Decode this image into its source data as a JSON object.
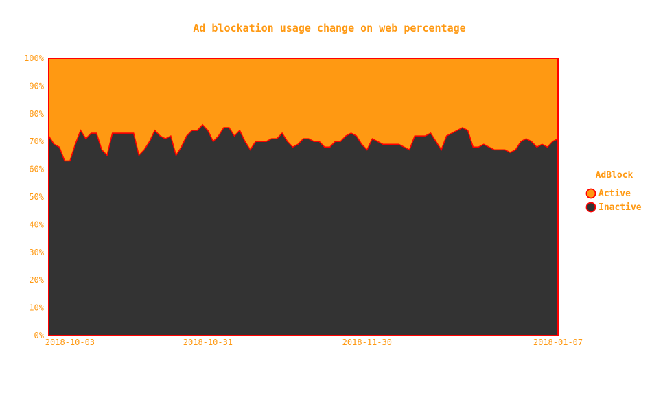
{
  "chart_data": {
    "type": "area",
    "stacked": true,
    "normalized": true,
    "title": "Ad blockation usage change on web percentage",
    "xlabel": "",
    "ylabel": "",
    "ylim": [
      0,
      100
    ],
    "y_ticks": [
      "0%",
      "10%",
      "20%",
      "30%",
      "40%",
      "50%",
      "60%",
      "70%",
      "80%",
      "90%",
      "100%"
    ],
    "x_ticks": [
      "2018-10-03",
      "2018-10-31",
      "2018-11-30",
      "2018-01-07"
    ],
    "x_range": [
      0,
      96
    ],
    "x_tick_positions": [
      4,
      30,
      60,
      96
    ],
    "legend": {
      "title": "AdBlock",
      "position": "right"
    },
    "series": [
      {
        "name": "Inactive",
        "color": "#333333",
        "values": [
          72,
          69,
          68,
          63,
          63,
          69,
          74,
          71,
          73,
          73,
          67,
          65,
          73,
          73,
          73,
          73,
          73,
          65,
          67,
          70,
          74,
          72,
          71,
          72,
          65,
          68,
          72,
          74,
          74,
          76,
          74,
          70,
          72,
          75,
          75,
          72,
          74,
          70,
          67,
          70,
          70,
          70,
          71,
          71,
          73,
          70,
          68,
          69,
          71,
          71,
          70,
          70,
          68,
          68,
          70,
          70,
          72,
          73,
          72,
          69,
          67,
          71,
          70,
          69,
          69,
          69,
          69,
          68,
          67,
          72,
          72,
          72,
          73,
          70,
          67,
          72,
          73,
          74,
          75,
          74,
          68,
          68,
          69,
          68,
          67,
          67,
          67,
          66,
          67,
          70,
          71,
          70,
          68,
          69,
          68,
          70,
          71
        ]
      },
      {
        "name": "Active",
        "color": "#ff9912",
        "values": [
          28,
          31,
          32,
          37,
          37,
          31,
          26,
          29,
          27,
          27,
          33,
          35,
          27,
          27,
          27,
          27,
          27,
          35,
          33,
          30,
          26,
          28,
          29,
          28,
          35,
          32,
          28,
          26,
          26,
          24,
          26,
          30,
          28,
          25,
          25,
          28,
          26,
          30,
          33,
          30,
          30,
          30,
          29,
          29,
          27,
          30,
          32,
          31,
          29,
          29,
          30,
          30,
          32,
          32,
          30,
          30,
          28,
          27,
          28,
          31,
          33,
          29,
          30,
          31,
          31,
          31,
          31,
          32,
          33,
          28,
          28,
          28,
          27,
          30,
          33,
          28,
          27,
          26,
          25,
          26,
          32,
          32,
          31,
          32,
          33,
          33,
          33,
          34,
          33,
          30,
          29,
          30,
          32,
          31,
          32,
          30,
          29
        ]
      }
    ],
    "colors": {
      "text": "#ff9912",
      "border": "#ff0000",
      "active": "#ff9912",
      "inactive": "#333333"
    }
  }
}
